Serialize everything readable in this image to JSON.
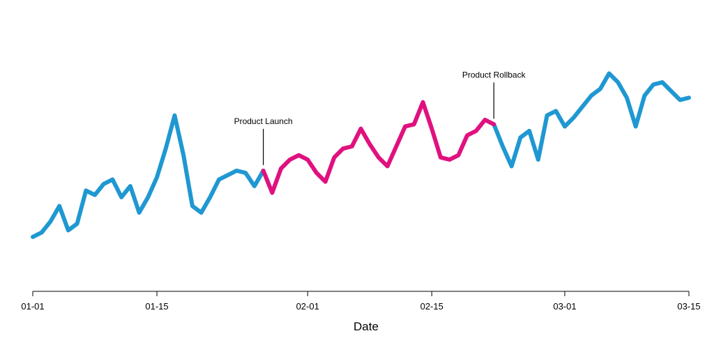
{
  "chart_data": {
    "type": "line",
    "title": "",
    "xlabel": "Date",
    "ylabel": "",
    "grid": false,
    "legend": "none",
    "x_tick_labels": [
      "01-01",
      "01-15",
      "02-01",
      "02-15",
      "03-01",
      "03-15"
    ],
    "x_tick_dates": [
      "2024-01-01",
      "2024-01-15",
      "2024-02-01",
      "2024-02-15",
      "2024-03-01",
      "2024-03-15"
    ],
    "xlim": [
      "2024-01-01",
      "2024-03-15"
    ],
    "ylim": [
      0,
      100
    ],
    "x": [
      "2024-01-01",
      "2024-01-02",
      "2024-01-03",
      "2024-01-04",
      "2024-01-05",
      "2024-01-06",
      "2024-01-07",
      "2024-01-08",
      "2024-01-09",
      "2024-01-10",
      "2024-01-11",
      "2024-01-12",
      "2024-01-13",
      "2024-01-14",
      "2024-01-15",
      "2024-01-16",
      "2024-01-17",
      "2024-01-18",
      "2024-01-19",
      "2024-01-20",
      "2024-01-21",
      "2024-01-22",
      "2024-01-23",
      "2024-01-24",
      "2024-01-25",
      "2024-01-26",
      "2024-01-27",
      "2024-01-28",
      "2024-01-29",
      "2024-01-30",
      "2024-01-31",
      "2024-02-01",
      "2024-02-02",
      "2024-02-03",
      "2024-02-04",
      "2024-02-05",
      "2024-02-06",
      "2024-02-07",
      "2024-02-08",
      "2024-02-09",
      "2024-02-10",
      "2024-02-11",
      "2024-02-12",
      "2024-02-13",
      "2024-02-14",
      "2024-02-15",
      "2024-02-16",
      "2024-02-17",
      "2024-02-18",
      "2024-02-19",
      "2024-02-20",
      "2024-02-21",
      "2024-02-22",
      "2024-02-23",
      "2024-02-24",
      "2024-02-25",
      "2024-02-26",
      "2024-02-27",
      "2024-02-28",
      "2024-02-29",
      "2024-03-01",
      "2024-03-02",
      "2024-03-03",
      "2024-03-04",
      "2024-03-05",
      "2024-03-06",
      "2024-03-07",
      "2024-03-08",
      "2024-03-09",
      "2024-03-10",
      "2024-03-11",
      "2024-03-12",
      "2024-03-13",
      "2024-03-14",
      "2024-03-15"
    ],
    "values": [
      12,
      14,
      19,
      26,
      15,
      18,
      33,
      31,
      36,
      38,
      30,
      35,
      23,
      30,
      39,
      52,
      67,
      49,
      26,
      23,
      30,
      38,
      40,
      42,
      41,
      35,
      42,
      32,
      43,
      47,
      49,
      47,
      41,
      37,
      48,
      52,
      53,
      61,
      54,
      48,
      44,
      53,
      62,
      63,
      73,
      61,
      48,
      47,
      49,
      58,
      60,
      65,
      63,
      53,
      44,
      57,
      60,
      47,
      67,
      69,
      62,
      66,
      71,
      76,
      79,
      86,
      82,
      75,
      62,
      76,
      81,
      82,
      78,
      74,
      75
    ],
    "highlight": {
      "start": "2024-01-27",
      "end": "2024-02-22"
    },
    "series_colors": {
      "base": "#1f98d2",
      "highlight": "#e0117f"
    },
    "annotations": [
      {
        "label": "Product Launch",
        "x": "2024-01-27"
      },
      {
        "label": "Product Rollback",
        "x": "2024-02-22"
      }
    ]
  }
}
